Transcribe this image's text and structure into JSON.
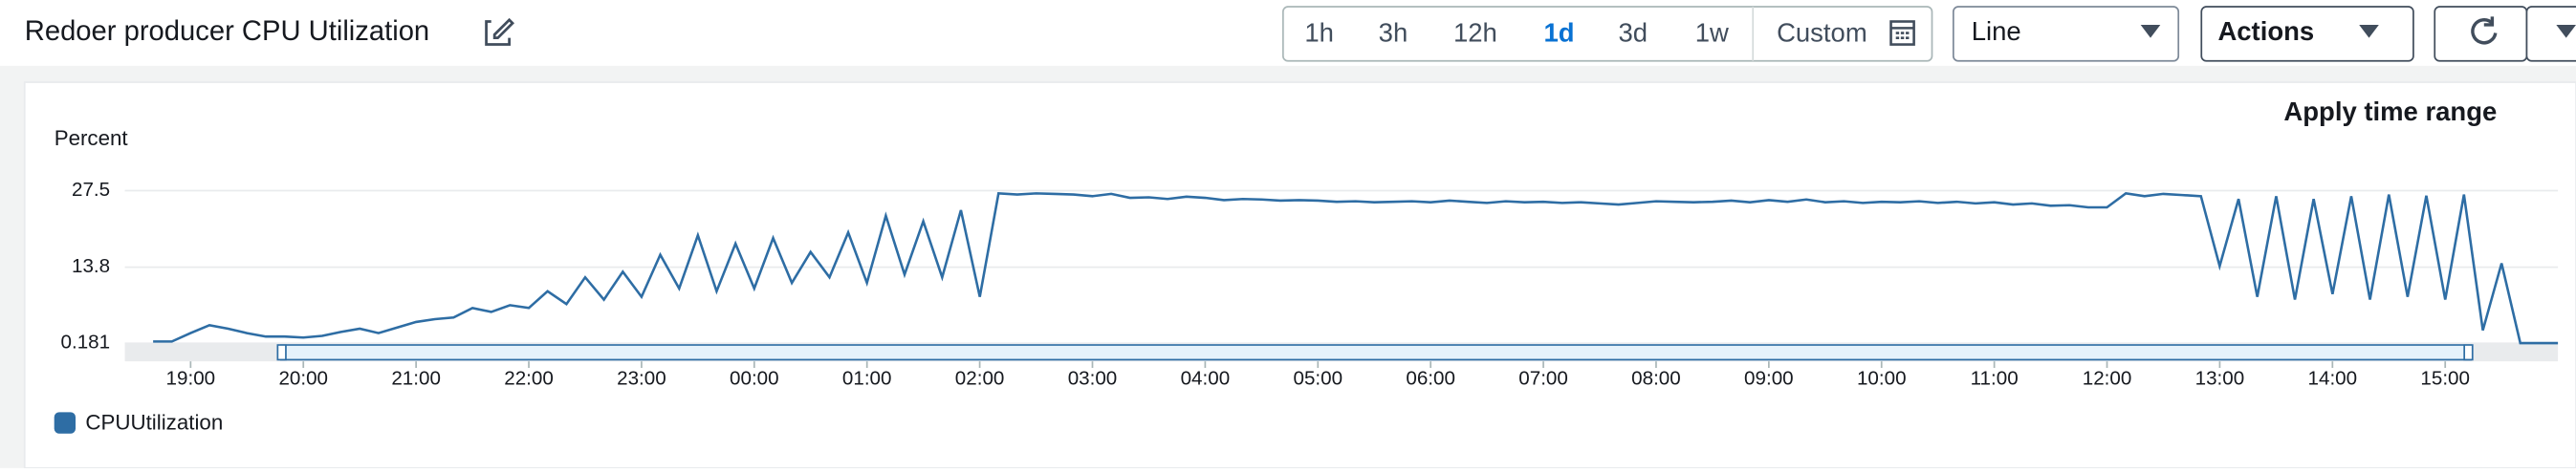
{
  "header": {
    "title": "Redoer producer CPU Utilization"
  },
  "toolbar": {
    "ranges": [
      "1h",
      "3h",
      "12h",
      "1d",
      "3d",
      "1w",
      "Custom"
    ],
    "view": "Line",
    "actions": "Actions"
  },
  "apply": "Apply time range",
  "chart_data": {
    "type": "line",
    "ylabel": "Percent",
    "ylim": [
      0.181,
      27.5
    ],
    "yticks": [
      0.181,
      13.8,
      27.5
    ],
    "grid": true,
    "xlim": [
      "18:25",
      "16:00"
    ],
    "xticks": [
      "19:00",
      "20:00",
      "21:00",
      "22:00",
      "23:00",
      "00:00",
      "01:00",
      "02:00",
      "03:00",
      "04:00",
      "05:00",
      "06:00",
      "07:00",
      "08:00",
      "09:00",
      "10:00",
      "11:00",
      "12:00",
      "13:00",
      "14:00",
      "15:00"
    ],
    "x": [
      "18:40",
      "18:50",
      "19:00",
      "19:10",
      "19:20",
      "19:30",
      "19:40",
      "19:50",
      "20:00",
      "20:10",
      "20:20",
      "20:30",
      "20:40",
      "20:50",
      "21:00",
      "21:10",
      "21:20",
      "21:30",
      "21:40",
      "21:50",
      "22:00",
      "22:10",
      "22:20",
      "22:30",
      "22:40",
      "22:50",
      "23:00",
      "23:10",
      "23:20",
      "23:30",
      "23:40",
      "23:50",
      "00:00",
      "00:10",
      "00:20",
      "00:30",
      "00:40",
      "00:50",
      "01:00",
      "01:10",
      "01:20",
      "01:30",
      "01:40",
      "01:50",
      "02:00",
      "02:10",
      "02:20",
      "02:30",
      "02:40",
      "02:50",
      "03:00",
      "03:10",
      "03:20",
      "03:30",
      "03:40",
      "03:50",
      "04:00",
      "04:10",
      "04:20",
      "04:30",
      "04:40",
      "04:50",
      "05:00",
      "05:10",
      "05:20",
      "05:30",
      "05:40",
      "05:50",
      "06:00",
      "06:10",
      "06:20",
      "06:30",
      "06:40",
      "06:50",
      "07:00",
      "07:10",
      "07:20",
      "07:30",
      "07:40",
      "07:50",
      "08:00",
      "08:10",
      "08:20",
      "08:30",
      "08:40",
      "08:50",
      "09:00",
      "09:10",
      "09:20",
      "09:30",
      "09:40",
      "09:50",
      "10:00",
      "10:10",
      "10:20",
      "10:30",
      "10:40",
      "10:50",
      "11:00",
      "11:10",
      "11:20",
      "11:30",
      "11:40",
      "11:50",
      "12:00",
      "12:10",
      "12:20",
      "12:30",
      "12:40",
      "12:50",
      "13:00",
      "13:10",
      "13:20",
      "13:30",
      "13:40",
      "13:50",
      "14:00",
      "14:10",
      "14:20",
      "14:30",
      "14:40",
      "14:50",
      "15:00",
      "15:10",
      "15:20",
      "15:30",
      "15:40",
      "15:50",
      "16:00"
    ],
    "series": [
      {
        "name": "CPUUtilization",
        "color": "#2e6da4",
        "values": [
          0.5,
          0.5,
          2.0,
          3.4,
          2.8,
          2.0,
          1.4,
          1.4,
          1.2,
          1.5,
          2.2,
          2.8,
          2.0,
          3.0,
          4.0,
          4.5,
          4.8,
          6.5,
          5.8,
          7.0,
          6.5,
          9.5,
          7.2,
          12.0,
          8.0,
          13.0,
          8.5,
          16.0,
          10.0,
          19.5,
          9.5,
          18.0,
          10.0,
          19.0,
          11.0,
          16.5,
          12.0,
          20.0,
          11.0,
          23.0,
          12.5,
          22.0,
          12.0,
          24.0,
          8.5,
          27.0,
          26.8,
          27.0,
          26.9,
          26.8,
          26.5,
          26.9,
          26.2,
          26.3,
          26.0,
          26.4,
          26.2,
          25.8,
          26.0,
          25.9,
          25.7,
          25.8,
          25.7,
          25.5,
          25.6,
          25.4,
          25.5,
          25.6,
          25.4,
          25.7,
          25.5,
          25.3,
          25.6,
          25.4,
          25.5,
          25.3,
          25.4,
          25.2,
          25.0,
          25.3,
          25.6,
          25.5,
          25.4,
          25.5,
          25.7,
          25.4,
          25.8,
          25.5,
          25.9,
          25.4,
          25.6,
          25.3,
          25.5,
          25.4,
          25.6,
          25.3,
          25.5,
          25.2,
          25.4,
          25.0,
          25.2,
          24.8,
          24.9,
          24.5,
          24.5,
          27.0,
          26.5,
          26.9,
          26.7,
          26.5,
          14.0,
          26.0,
          8.5,
          26.5,
          8.0,
          26.0,
          9.0,
          26.5,
          8.0,
          26.8,
          8.5,
          26.6,
          8.0,
          26.8,
          2.5,
          14.5,
          0.2,
          0.2,
          0.2
        ]
      }
    ]
  }
}
